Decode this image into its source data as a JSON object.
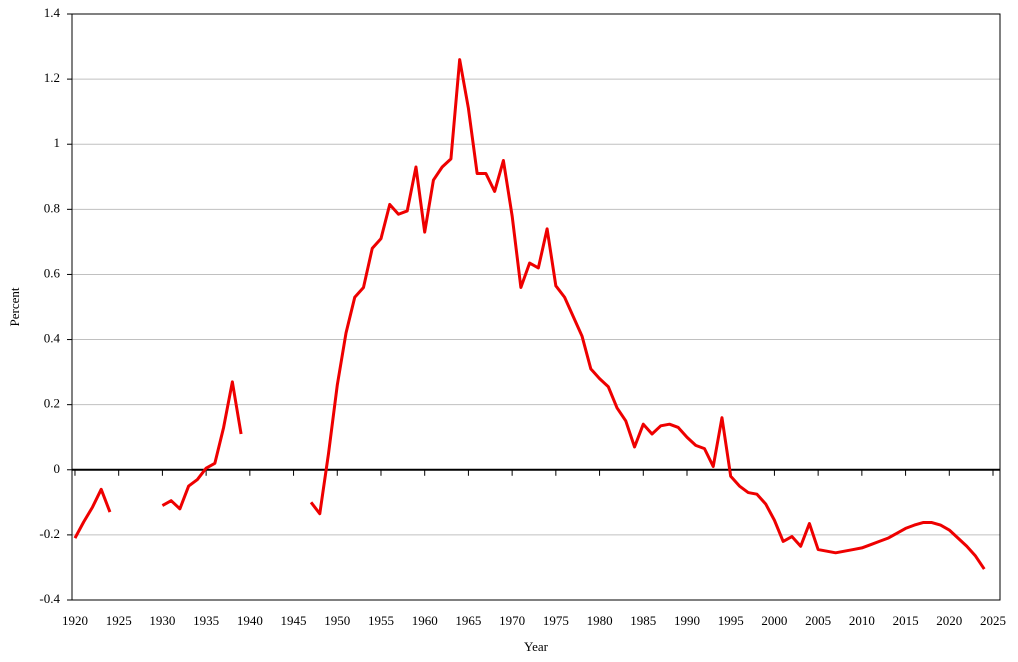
{
  "chart_data": {
    "type": "line",
    "y_label": "Percent",
    "x_label": "Year",
    "x": [
      1920,
      1921,
      1922,
      1923,
      1924,
      1925,
      1926,
      1927,
      1928,
      1929,
      1930,
      1931,
      1932,
      1933,
      1934,
      1935,
      1936,
      1937,
      1938,
      1939,
      1940,
      1941,
      1942,
      1943,
      1944,
      1945,
      1946,
      1947,
      1948,
      1949,
      1950,
      1951,
      1952,
      1953,
      1954,
      1955,
      1956,
      1957,
      1958,
      1959,
      1960,
      1961,
      1962,
      1963,
      1964,
      1965,
      1966,
      1967,
      1968,
      1969,
      1970,
      1971,
      1972,
      1973,
      1974,
      1975,
      1976,
      1977,
      1978,
      1979,
      1980,
      1981,
      1982,
      1983,
      1984,
      1985,
      1986,
      1987,
      1988,
      1989,
      1990,
      1991,
      1992,
      1993,
      1994,
      1995,
      1996,
      1997,
      1998,
      1999,
      2000,
      2001,
      2002,
      2003,
      2004,
      2005,
      2006,
      2007,
      2008,
      2009,
      2010,
      2011,
      2012,
      2013,
      2014,
      2015,
      2016,
      2017,
      2018,
      2019,
      2020,
      2021,
      2022,
      2023,
      2024
    ],
    "series": [
      {
        "color": "#ee0000",
        "values": [
          -0.21,
          -0.16,
          -0.115,
          -0.06,
          -0.13,
          null,
          null,
          null,
          null,
          null,
          -0.11,
          -0.095,
          -0.12,
          -0.05,
          -0.03,
          0.005,
          0.02,
          0.13,
          0.27,
          0.11,
          null,
          null,
          null,
          null,
          null,
          null,
          null,
          -0.1,
          -0.135,
          0.05,
          0.26,
          0.42,
          0.53,
          0.56,
          0.68,
          0.71,
          0.815,
          0.785,
          0.795,
          0.93,
          0.73,
          0.89,
          0.93,
          0.955,
          1.26,
          1.11,
          0.91,
          0.91,
          0.855,
          0.95,
          0.78,
          0.56,
          0.635,
          0.62,
          0.74,
          0.565,
          0.53,
          0.47,
          0.41,
          0.31,
          0.28,
          0.255,
          0.19,
          0.15,
          0.07,
          0.14,
          0.11,
          0.135,
          0.14,
          0.13,
          0.1,
          0.075,
          0.065,
          0.01,
          0.16,
          -0.02,
          -0.05,
          -0.07,
          -0.075,
          -0.105,
          -0.155,
          -0.22,
          -0.205,
          -0.235,
          -0.165,
          -0.245,
          -0.25,
          -0.255,
          -0.25,
          -0.245,
          -0.24,
          -0.23,
          -0.22,
          -0.21,
          -0.195,
          -0.18,
          -0.17,
          -0.162,
          -0.162,
          -0.17,
          -0.185,
          -0.21,
          -0.235,
          -0.265,
          -0.305
        ]
      }
    ],
    "xlim": [
      1919.66,
      2025.8
    ],
    "xticks": [
      1920,
      1925,
      1930,
      1935,
      1940,
      1945,
      1950,
      1955,
      1960,
      1965,
      1970,
      1975,
      1980,
      1985,
      1990,
      1995,
      2000,
      2005,
      2010,
      2015,
      2020,
      2025
    ],
    "ylim": [
      -0.4,
      1.4
    ],
    "yticks": [
      1.4,
      1.2,
      1,
      0.8,
      0.6,
      0.4,
      0.2,
      0,
      -0.2,
      -0.4
    ],
    "grid": true
  }
}
